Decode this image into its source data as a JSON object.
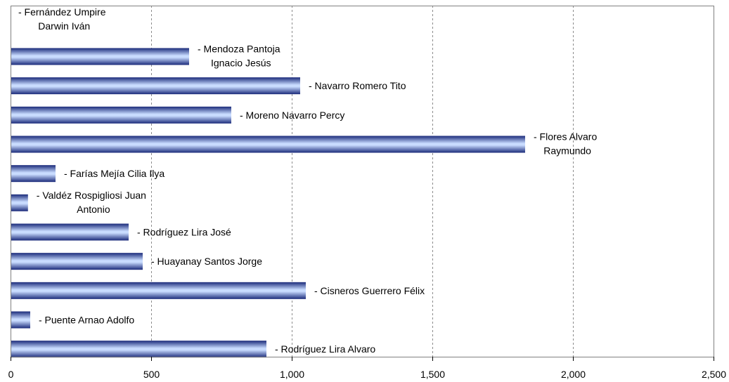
{
  "chart_data": {
    "type": "bar",
    "orientation": "horizontal",
    "title": "",
    "xlabel": "",
    "ylabel": "",
    "xlim": [
      0,
      2500
    ],
    "ticks": [
      0,
      500,
      1000,
      1500,
      2000,
      2500
    ],
    "tick_labels": [
      "0",
      "500",
      "1,000",
      "1,500",
      "2,000",
      "2,500"
    ],
    "grid": true,
    "legend": "none",
    "bar_colors": {
      "dark": "#1a2a7a",
      "light": "#c9dcff"
    },
    "categories": [
      "- Fernández Umpire Darwin Iván",
      "- Mendoza Pantoja Ignacio Jesús",
      "- Navarro Romero Tito",
      "- Moreno Navarro Percy",
      "- Flores  Alvaro Raymundo",
      "- Farías Mejía Cilia Ilya",
      "- Valdéz Rospigliosi Juan Antonio",
      "- Rodríguez Lira José",
      "- Huayanay Santos Jorge",
      "- Cisneros Guerrero Félix",
      "- Puente Arnao Adolfo",
      "- Rodríguez Lira Alvaro"
    ],
    "label_lines": [
      [
        "- Fernández Umpire",
        "Darwin Iván"
      ],
      [
        "- Mendoza Pantoja",
        "Ignacio Jesús"
      ],
      [
        "- Navarro Romero Tito"
      ],
      [
        "- Moreno Navarro Percy"
      ],
      [
        "- Flores  Alvaro",
        "Raymundo"
      ],
      [
        "- Farías Mejía Cilia Ilya"
      ],
      [
        "- Valdéz Rospigliosi Juan",
        "Antonio"
      ],
      [
        "- Rodríguez Lira José"
      ],
      [
        "- Huayanay Santos Jorge"
      ],
      [
        "- Cisneros Guerrero Félix"
      ],
      [
        "- Puente Arnao Adolfo"
      ],
      [
        "- Rodríguez Lira Alvaro"
      ]
    ],
    "values": [
      0,
      635,
      1030,
      785,
      1830,
      160,
      62,
      420,
      470,
      1050,
      70,
      910
    ]
  }
}
